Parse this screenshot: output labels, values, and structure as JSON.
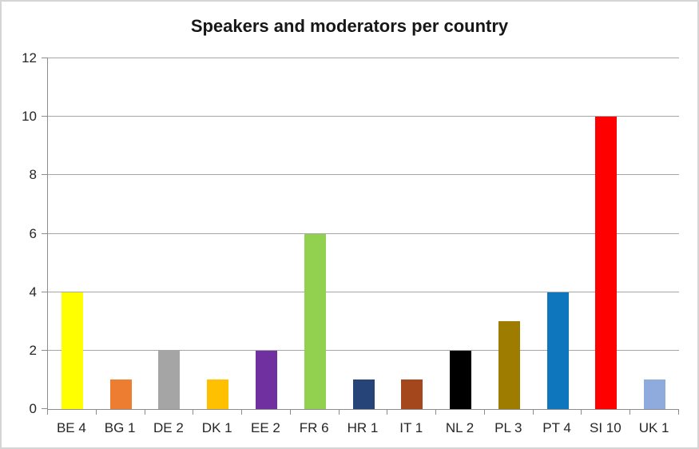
{
  "chart_data": {
    "type": "bar",
    "title": "Speakers and moderators per country",
    "categories": [
      "BE 4",
      "BG 1",
      "DE 2",
      "DK 1",
      "EE 2",
      "FR 6",
      "HR 1",
      "IT 1",
      "NL 2",
      "PL 3",
      "PT 4",
      "SI 10",
      "UK 1"
    ],
    "values": [
      4,
      1,
      2,
      1,
      2,
      6,
      1,
      1,
      2,
      3,
      4,
      10,
      1
    ],
    "bar_colors": [
      "#FFFF00",
      "#ED7D31",
      "#A5A5A5",
      "#FFC000",
      "#7030A0",
      "#92D050",
      "#264478",
      "#A5471D",
      "#000000",
      "#9E7C00",
      "#0E76BD",
      "#FF0000",
      "#8FAADC"
    ],
    "xlabel": "",
    "ylabel": "",
    "ylim": [
      0,
      12
    ],
    "yticks": [
      0,
      2,
      4,
      6,
      8,
      10,
      12
    ],
    "grid": true,
    "legend": "none"
  },
  "style": {
    "background": "#FFFFFF",
    "frame_border": "#D5D5D5",
    "axis_color": "#8C8C8C",
    "gridline_color": "#A6A6A6",
    "title_color": "#171717",
    "label_color": "#262626"
  }
}
